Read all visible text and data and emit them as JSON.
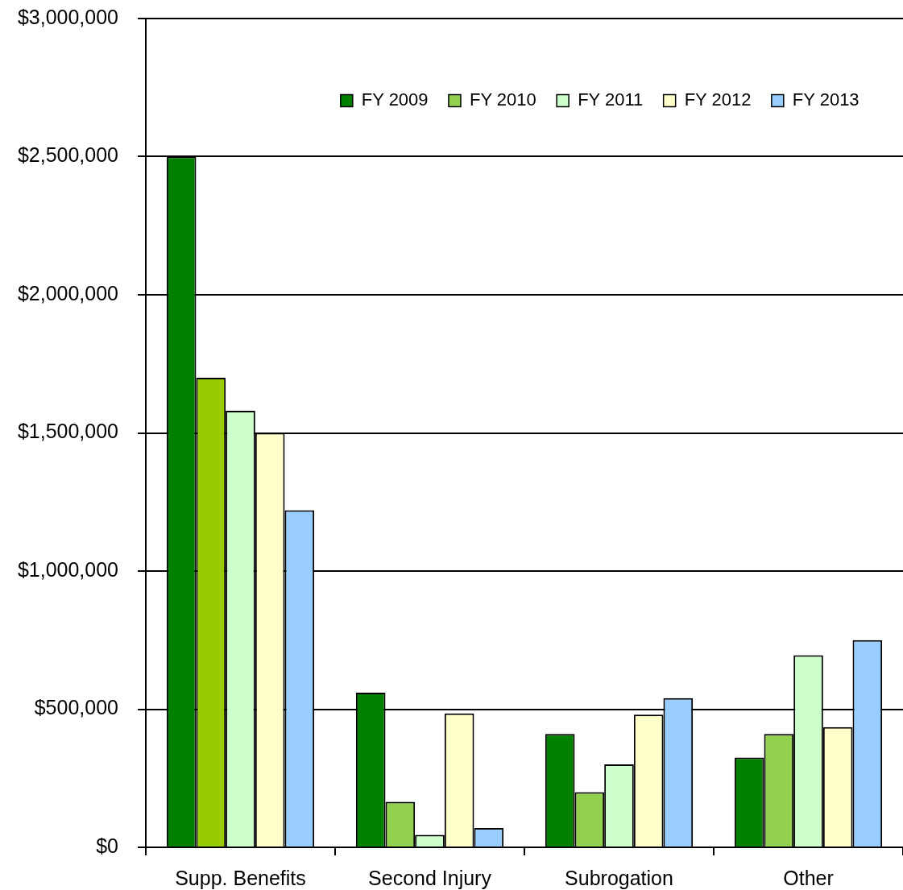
{
  "chart_data": {
    "type": "bar",
    "categories": [
      "Supp. Benefits",
      "Second Injury",
      "Subrogation",
      "Other"
    ],
    "series": [
      {
        "name": "FY 2009",
        "color": "#008000",
        "values": [
          2500000,
          560000,
          410000,
          325000
        ]
      },
      {
        "name": "FY 2010",
        "color": "#92d050",
        "colors": [
          "#99cc00",
          "#92d050",
          "#92d050",
          "#92d050"
        ],
        "values": [
          1700000,
          165000,
          200000,
          410000
        ]
      },
      {
        "name": "FY 2011",
        "color": "#ccffcc",
        "values": [
          1580000,
          45000,
          300000,
          695000
        ]
      },
      {
        "name": "FY 2012",
        "color": "#ffffcc",
        "values": [
          1500000,
          485000,
          480000,
          435000
        ]
      },
      {
        "name": "FY 2013",
        "color": "#99ccff",
        "values": [
          1220000,
          70000,
          540000,
          750000
        ]
      }
    ],
    "ylim": [
      0,
      3000000
    ],
    "yticks": [
      {
        "value": 0,
        "label": "$0"
      },
      {
        "value": 500000,
        "label": "$500,000"
      },
      {
        "value": 1000000,
        "label": "$1,000,000"
      },
      {
        "value": 1500000,
        "label": "$1,500,000"
      },
      {
        "value": 2000000,
        "label": "$2,000,000"
      },
      {
        "value": 2500000,
        "label": "$2,500,000"
      },
      {
        "value": 3000000,
        "label": "$3,000,000"
      }
    ],
    "grid": "y",
    "legend": "top right"
  }
}
